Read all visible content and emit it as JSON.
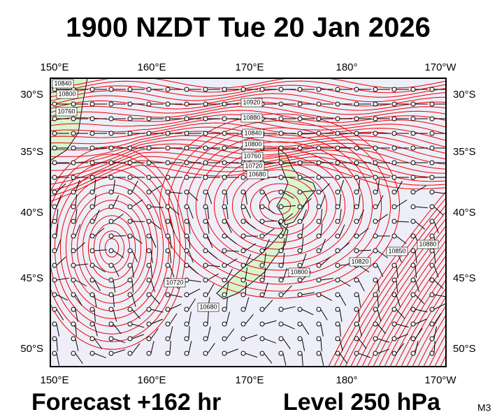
{
  "header": {
    "title": "1900 NZDT Tue 20 Jan 2026"
  },
  "map": {
    "lon_labels": [
      "150°E",
      "160°E",
      "170°E",
      "180°",
      "170°W"
    ],
    "lat_labels": [
      "30°S",
      "35°S",
      "40°S",
      "45°S",
      "50°S"
    ],
    "contour_labels": [
      "10840",
      "10800",
      "10760",
      "10920",
      "10880",
      "10840",
      "10800",
      "10760",
      "10720",
      "10680",
      "10720",
      "10680",
      "10800",
      "10820",
      "10850",
      "10880"
    ]
  },
  "footer": {
    "forecast": "Forecast +162 hr",
    "level": "Level 250 hPa",
    "model": "M3"
  }
}
